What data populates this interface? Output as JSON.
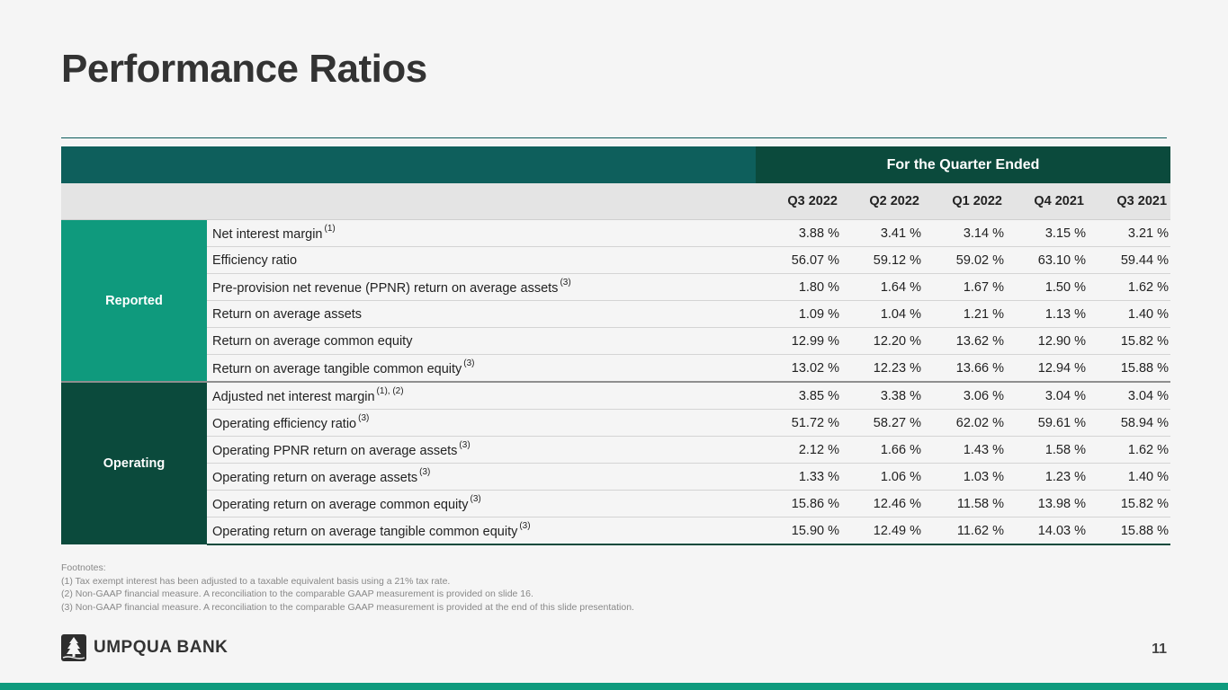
{
  "slide": {
    "title": "Performance Ratios",
    "page_number": "11"
  },
  "table": {
    "period_header": "For the Quarter Ended",
    "quarters": [
      "Q3 2022",
      "Q2 2022",
      "Q1 2022",
      "Q4 2021",
      "Q3 2021"
    ],
    "groups": [
      {
        "label": "Reported",
        "color": "#0f9a7d",
        "rows": [
          {
            "metric": "Net interest margin",
            "note": "(1)",
            "values": [
              "3.88 %",
              "3.41 %",
              "3.14 %",
              "3.15 %",
              "3.21 %"
            ]
          },
          {
            "metric": "Efficiency ratio",
            "note": "",
            "values": [
              "56.07 %",
              "59.12 %",
              "59.02 %",
              "63.10 %",
              "59.44 %"
            ]
          },
          {
            "metric": "Pre-provision net revenue (PPNR) return on average assets",
            "note": "(3)",
            "values": [
              "1.80 %",
              "1.64 %",
              "1.67 %",
              "1.50 %",
              "1.62 %"
            ]
          },
          {
            "metric": "Return on average assets",
            "note": "",
            "values": [
              "1.09 %",
              "1.04 %",
              "1.21 %",
              "1.13 %",
              "1.40 %"
            ]
          },
          {
            "metric": "Return on average common equity",
            "note": "",
            "values": [
              "12.99 %",
              "12.20 %",
              "13.62 %",
              "12.90 %",
              "15.82 %"
            ]
          },
          {
            "metric": "Return on average tangible common equity",
            "note": "(3)",
            "values": [
              "13.02 %",
              "12.23 %",
              "13.66 %",
              "12.94 %",
              "15.88 %"
            ]
          }
        ]
      },
      {
        "label": "Operating",
        "color": "#0b4a3c",
        "rows": [
          {
            "metric": "Adjusted net interest margin",
            "note": "(1), (2)",
            "values": [
              "3.85 %",
              "3.38 %",
              "3.06 %",
              "3.04 %",
              "3.04 %"
            ]
          },
          {
            "metric": "Operating efficiency ratio",
            "note": "(3)",
            "values": [
              "51.72 %",
              "58.27 %",
              "62.02 %",
              "59.61 %",
              "58.94 %"
            ]
          },
          {
            "metric": "Operating PPNR return on average assets",
            "note": "(3)",
            "values": [
              "2.12 %",
              "1.66 %",
              "1.43 %",
              "1.58 %",
              "1.62 %"
            ]
          },
          {
            "metric": "Operating return on average assets",
            "note": "(3)",
            "values": [
              "1.33 %",
              "1.06 %",
              "1.03 %",
              "1.23 %",
              "1.40 %"
            ]
          },
          {
            "metric": "Operating return on average common equity",
            "note": "(3)",
            "values": [
              "15.86 %",
              "12.46 %",
              "11.58 %",
              "13.98 %",
              "15.82 %"
            ]
          },
          {
            "metric": "Operating return on average tangible common equity",
            "note": "(3)",
            "values": [
              "15.90 %",
              "12.49 %",
              "11.62 %",
              "14.03 %",
              "15.88 %"
            ]
          }
        ]
      }
    ]
  },
  "footnotes": {
    "heading": "Footnotes:",
    "items": [
      "(1) Tax exempt interest has been adjusted to a taxable equivalent basis using a 21% tax rate.",
      "(2) Non-GAAP financial measure.  A reconciliation to the comparable GAAP measurement is provided on slide 16.",
      "(3) Non-GAAP financial measure.  A reconciliation to the comparable GAAP measurement is provided at the end of this slide presentation."
    ]
  },
  "brand": {
    "name": "UMPQUA BANK",
    "logo_icon": "tree-icon",
    "accent_color": "#0f9a7d",
    "dark_color": "#0b4a3c"
  }
}
